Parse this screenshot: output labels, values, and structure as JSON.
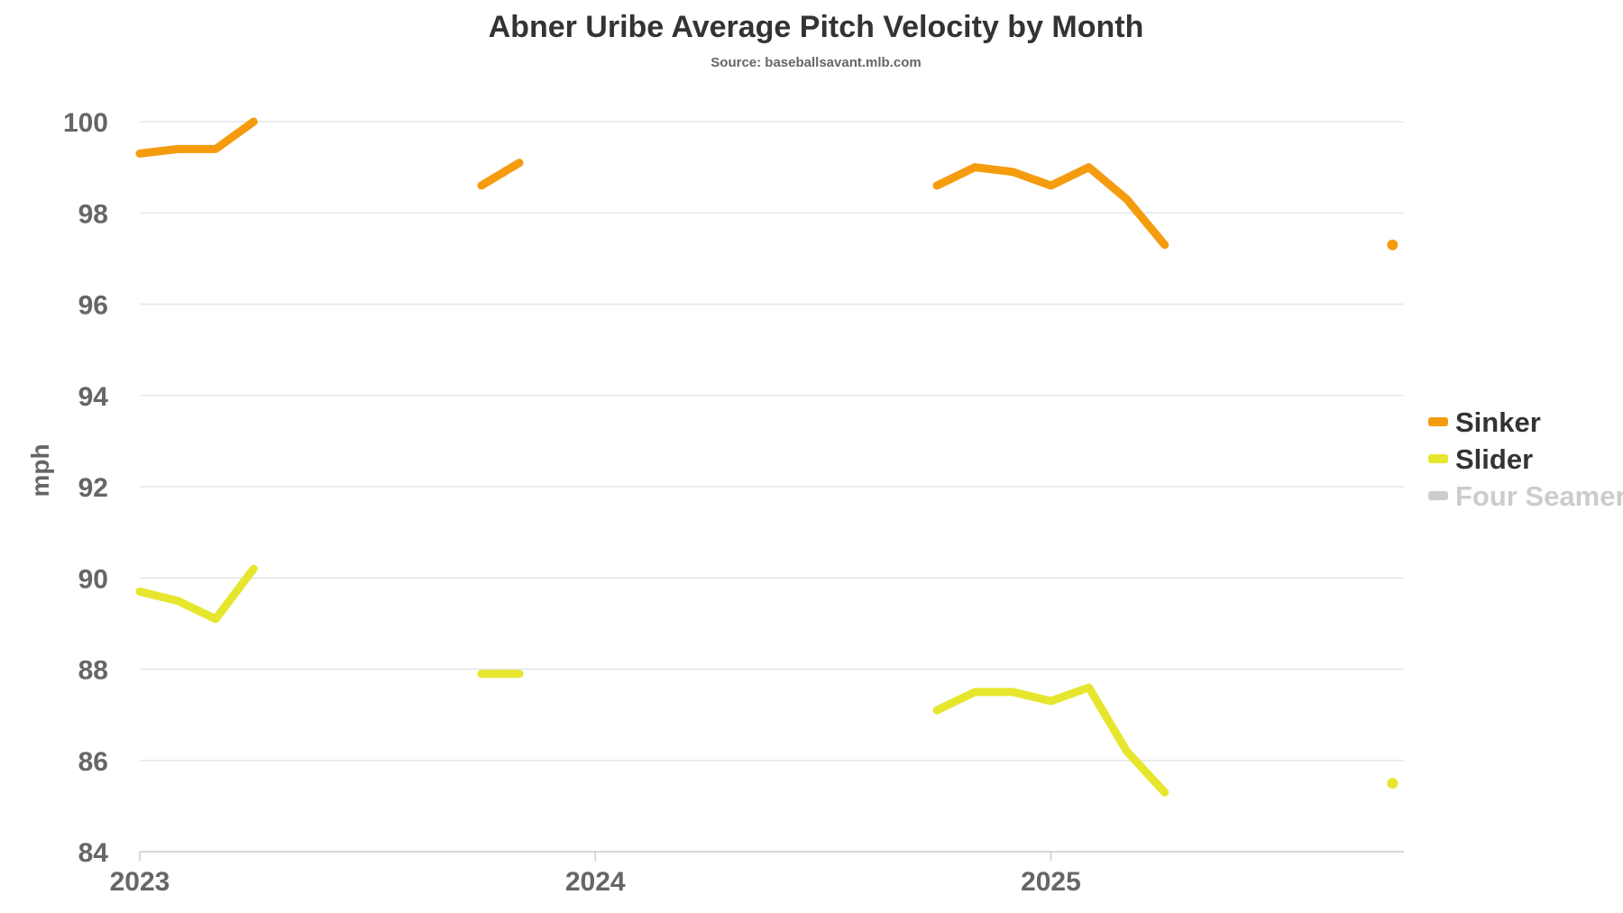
{
  "chart_data": {
    "type": "line",
    "title": "Abner Uribe Average Pitch Velocity by Month",
    "subtitle": "Source: baseballsavant.mlb.com",
    "xlabel": "",
    "ylabel": "mph",
    "ylim": [
      84,
      100
    ],
    "yticks": [
      "84",
      "86",
      "88",
      "90",
      "92",
      "94",
      "96",
      "98",
      "100"
    ],
    "xlim": [
      0,
      33.3
    ],
    "xticks": [
      {
        "label": "2023",
        "value": 0
      },
      {
        "label": "2024",
        "value": 12
      },
      {
        "label": "2025",
        "value": 24
      }
    ],
    "grid": true,
    "legend_position": "right",
    "series": [
      {
        "name": "Sinker",
        "color": "#f59c0e",
        "visible": true,
        "segments": [
          [
            [
              0,
              99.3
            ],
            [
              1,
              99.4
            ],
            [
              2,
              99.4
            ],
            [
              3,
              100.0
            ]
          ],
          [
            [
              9,
              98.6
            ],
            [
              10,
              99.1
            ]
          ],
          [
            [
              21,
              98.6
            ],
            [
              22,
              99.0
            ],
            [
              23,
              98.9
            ],
            [
              24,
              98.6
            ],
            [
              25,
              99.0
            ],
            [
              26,
              98.3
            ],
            [
              27,
              97.3
            ]
          ],
          [
            [
              33,
              97.3
            ]
          ]
        ]
      },
      {
        "name": "Slider",
        "color": "#e6e62e",
        "visible": true,
        "segments": [
          [
            [
              0,
              89.7
            ],
            [
              1,
              89.5
            ],
            [
              2,
              89.1
            ],
            [
              3,
              90.2
            ]
          ],
          [
            [
              9,
              87.9
            ],
            [
              10,
              87.9
            ]
          ],
          [
            [
              21,
              87.1
            ],
            [
              22,
              87.5
            ],
            [
              23,
              87.5
            ],
            [
              24,
              87.3
            ],
            [
              25,
              87.6
            ],
            [
              26,
              86.2
            ],
            [
              27,
              85.3
            ]
          ],
          [
            [
              33,
              85.5
            ]
          ]
        ]
      },
      {
        "name": "Four Seamer",
        "color": "#cccccc",
        "visible": false,
        "segments": []
      }
    ]
  }
}
